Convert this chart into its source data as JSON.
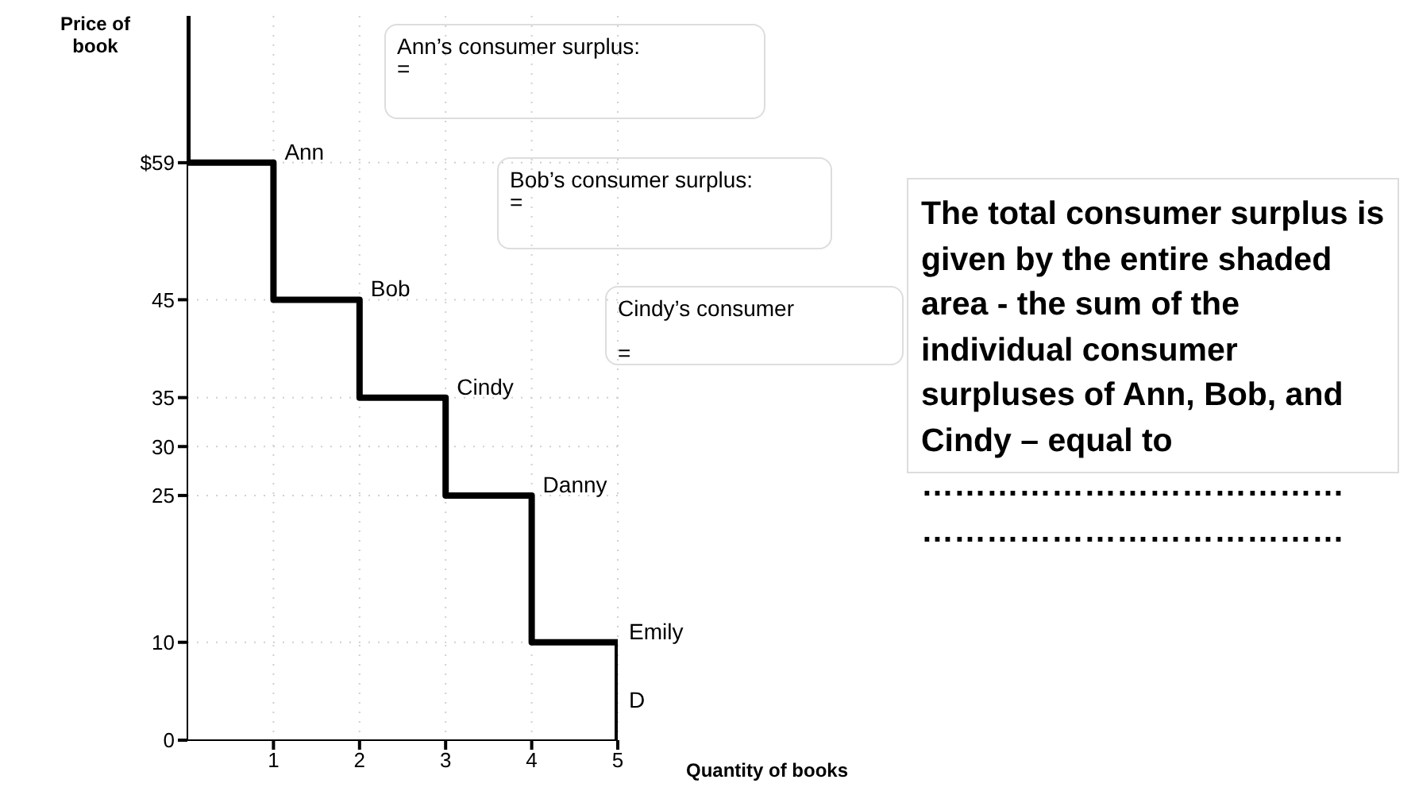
{
  "chart_data": {
    "type": "step",
    "ylabel": "Price of book",
    "xlabel": "Quantity of books",
    "x": [
      0,
      0,
      1,
      2,
      3,
      4,
      5,
      5
    ],
    "values": [
      74,
      59,
      45,
      35,
      25,
      10,
      10,
      0
    ],
    "color": "#000000",
    "xlim": [
      0,
      5
    ],
    "xticks": [
      1,
      2,
      3,
      4,
      5
    ],
    "ylim": [
      0,
      74
    ],
    "yticks": [
      {
        "value": 0,
        "label": "0"
      },
      10,
      25,
      30,
      35,
      45,
      {
        "value": 59,
        "label": "$59"
      }
    ],
    "grid": true,
    "marker": "none",
    "line_style": "solid",
    "annotations": [
      {
        "text": "Ann",
        "x": 1,
        "y": 59
      },
      {
        "text": "Bob",
        "x": 2,
        "y": 45
      },
      {
        "text": "Cindy",
        "x": 3,
        "y": 35
      },
      {
        "text": "Danny",
        "x": 4,
        "y": 25
      },
      {
        "text": "Emily",
        "x": 5,
        "y": 10
      },
      {
        "text": "D",
        "x": 5,
        "y": 3
      },
      "Ann’s consumer surplus:\n=",
      "Bob’s consumer surplus:\n=",
      "Cindy’s consumer\n\n=",
      "The total consumer surplus is given by the entire shaded area - the sum of the individual consumer surpluses of Ann, Bob, and Cindy – equal to\n…………………………………\n…………………………………"
    ]
  }
}
